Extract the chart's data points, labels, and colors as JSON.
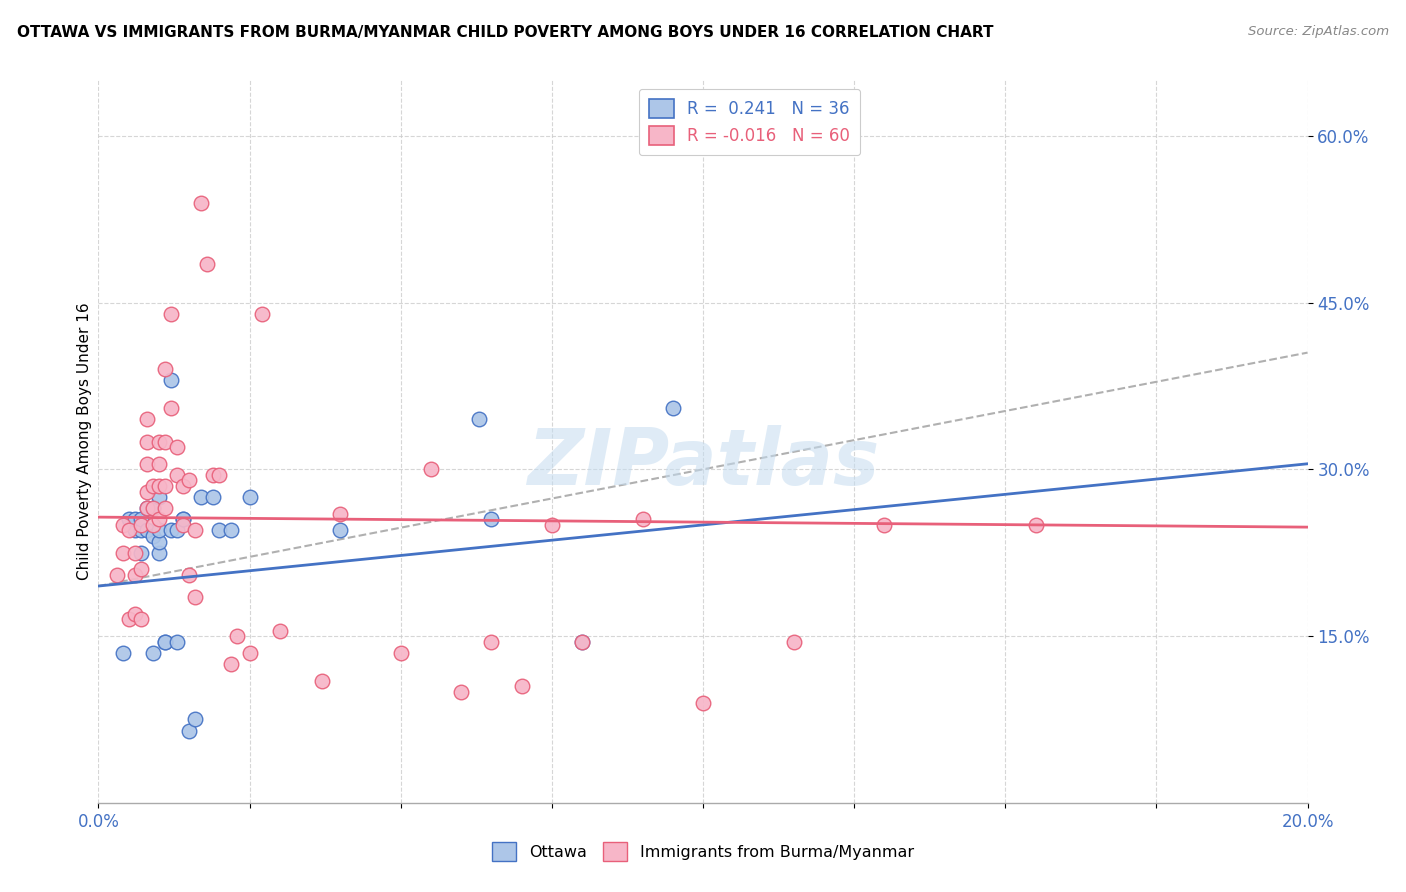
{
  "title": "OTTAWA VS IMMIGRANTS FROM BURMA/MYANMAR CHILD POVERTY AMONG BOYS UNDER 16 CORRELATION CHART",
  "source": "Source: ZipAtlas.com",
  "ylabel": "Child Poverty Among Boys Under 16",
  "xlim": [
    0.0,
    0.2
  ],
  "ylim": [
    0.0,
    0.65
  ],
  "yticks": [
    0.15,
    0.3,
    0.45,
    0.6
  ],
  "ytick_labels": [
    "15.0%",
    "30.0%",
    "45.0%",
    "60.0%"
  ],
  "xticks": [
    0.0,
    0.025,
    0.05,
    0.075,
    0.1,
    0.125,
    0.15,
    0.175,
    0.2
  ],
  "xtick_labels": [
    "0.0%",
    "",
    "",
    "",
    "",
    "",
    "",
    "",
    "20.0%"
  ],
  "watermark": "ZIPatlas",
  "color_ottawa": "#adc6e8",
  "color_burma": "#f7b6c8",
  "color_blue": "#4472c4",
  "color_pink": "#e8607a",
  "trendline_dashed_color": "#b0b0b0",
  "ottawa_x": [
    0.004,
    0.005,
    0.006,
    0.006,
    0.007,
    0.007,
    0.007,
    0.008,
    0.008,
    0.009,
    0.009,
    0.009,
    0.01,
    0.01,
    0.01,
    0.01,
    0.011,
    0.011,
    0.012,
    0.012,
    0.013,
    0.013,
    0.014,
    0.014,
    0.015,
    0.016,
    0.017,
    0.019,
    0.02,
    0.022,
    0.025,
    0.04,
    0.063,
    0.065,
    0.08,
    0.095
  ],
  "ottawa_y": [
    0.135,
    0.255,
    0.245,
    0.255,
    0.225,
    0.245,
    0.255,
    0.245,
    0.265,
    0.135,
    0.24,
    0.265,
    0.225,
    0.235,
    0.245,
    0.275,
    0.145,
    0.145,
    0.38,
    0.245,
    0.145,
    0.245,
    0.255,
    0.255,
    0.065,
    0.075,
    0.275,
    0.275,
    0.245,
    0.245,
    0.275,
    0.245,
    0.345,
    0.255,
    0.145,
    0.355
  ],
  "burma_x": [
    0.003,
    0.004,
    0.004,
    0.005,
    0.005,
    0.006,
    0.006,
    0.006,
    0.007,
    0.007,
    0.007,
    0.008,
    0.008,
    0.008,
    0.008,
    0.008,
    0.009,
    0.009,
    0.009,
    0.01,
    0.01,
    0.01,
    0.01,
    0.011,
    0.011,
    0.011,
    0.011,
    0.012,
    0.012,
    0.013,
    0.013,
    0.014,
    0.014,
    0.015,
    0.015,
    0.016,
    0.016,
    0.017,
    0.018,
    0.019,
    0.02,
    0.022,
    0.023,
    0.025,
    0.027,
    0.03,
    0.037,
    0.04,
    0.05,
    0.055,
    0.06,
    0.065,
    0.07,
    0.075,
    0.08,
    0.09,
    0.1,
    0.115,
    0.13,
    0.155
  ],
  "burma_y": [
    0.205,
    0.225,
    0.25,
    0.165,
    0.245,
    0.17,
    0.205,
    0.225,
    0.165,
    0.21,
    0.25,
    0.265,
    0.28,
    0.305,
    0.325,
    0.345,
    0.25,
    0.265,
    0.285,
    0.255,
    0.285,
    0.305,
    0.325,
    0.265,
    0.285,
    0.325,
    0.39,
    0.355,
    0.44,
    0.295,
    0.32,
    0.25,
    0.285,
    0.205,
    0.29,
    0.185,
    0.245,
    0.54,
    0.485,
    0.295,
    0.295,
    0.125,
    0.15,
    0.135,
    0.44,
    0.155,
    0.11,
    0.26,
    0.135,
    0.3,
    0.1,
    0.145,
    0.105,
    0.25,
    0.145,
    0.255,
    0.09,
    0.145,
    0.25,
    0.25
  ],
  "ottawa_trend_x": [
    0.0,
    0.2
  ],
  "ottawa_trend_y": [
    0.195,
    0.305
  ],
  "burma_trend_x": [
    0.0,
    0.2
  ],
  "burma_trend_y": [
    0.257,
    0.248
  ],
  "dashed_trend_x": [
    0.0,
    0.2
  ],
  "dashed_trend_y": [
    0.195,
    0.405
  ]
}
